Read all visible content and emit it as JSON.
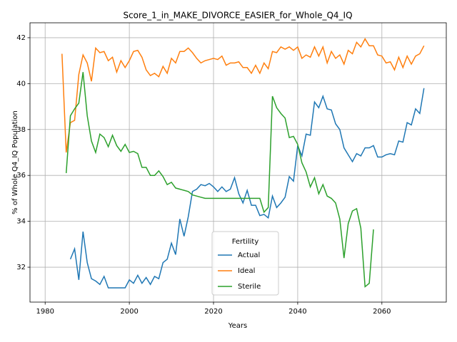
{
  "chart_data": {
    "type": "line",
    "title": "Score_1_in_MAKE_DIVORCE_EASIER_for_Whole_Q4_IQ",
    "x_label": "Years",
    "y_label": "% of Whole Q4_IQ Population",
    "legend_title": "Fertility",
    "legend": "lower center",
    "grid": true,
    "x": [
      1984,
      1985,
      1986,
      1987,
      1988,
      1989,
      1990,
      1991,
      1992,
      1993,
      1994,
      1995,
      1996,
      1997,
      1998,
      1999,
      2000,
      2001,
      2002,
      2003,
      2004,
      2005,
      2006,
      2007,
      2008,
      2009,
      2010,
      2011,
      2012,
      2013,
      2014,
      2015,
      2016,
      2017,
      2018,
      2019,
      2020,
      2021,
      2022,
      2023,
      2024,
      2025,
      2026,
      2027,
      2028,
      2029,
      2030,
      2031,
      2032,
      2033,
      2034,
      2035,
      2036,
      2037,
      2038,
      2039,
      2040,
      2041,
      2042,
      2043,
      2044,
      2045,
      2046,
      2047,
      2048,
      2049,
      2050,
      2051,
      2052,
      2053,
      2054,
      2055,
      2056,
      2057,
      2058,
      2059,
      2060,
      2061,
      2062,
      2063,
      2064,
      2065,
      2066,
      2067,
      2068,
      2069,
      2070
    ],
    "series": [
      {
        "name": "Actual",
        "color": "#1f77b4",
        "values": [
          null,
          null,
          32.35,
          32.8,
          31.45,
          33.55,
          32.2,
          31.5,
          31.4,
          31.25,
          31.6,
          31.1,
          31.1,
          31.1,
          31.1,
          31.1,
          31.45,
          31.3,
          31.65,
          31.3,
          31.55,
          31.25,
          31.6,
          31.5,
          32.2,
          32.35,
          33.05,
          32.55,
          34.1,
          33.35,
          34.2,
          35.3,
          35.4,
          35.6,
          35.55,
          35.65,
          35.5,
          35.3,
          35.5,
          35.3,
          35.4,
          35.9,
          35.2,
          34.8,
          35.35,
          34.7,
          34.7,
          34.25,
          34.3,
          34.15,
          35.1,
          34.6,
          34.8,
          35.05,
          35.95,
          35.75,
          37.3,
          36.85,
          37.8,
          37.75,
          39.2,
          38.95,
          39.45,
          38.9,
          38.85,
          38.25,
          38.0,
          37.2,
          36.9,
          36.6,
          36.95,
          36.85,
          37.2,
          37.2,
          37.3,
          36.8,
          36.8,
          36.9,
          36.95,
          36.9,
          37.5,
          37.45,
          38.3,
          38.2,
          38.9,
          38.7,
          39.8
        ]
      },
      {
        "name": "Ideal",
        "color": "#ff7f0e",
        "values": [
          41.3,
          37.0,
          38.3,
          38.4,
          40.4,
          41.25,
          40.9,
          40.1,
          41.55,
          41.35,
          41.4,
          41.0,
          41.15,
          40.5,
          41.0,
          40.7,
          41.0,
          41.4,
          41.45,
          41.15,
          40.6,
          40.35,
          40.45,
          40.3,
          40.75,
          40.45,
          41.1,
          40.9,
          41.4,
          41.4,
          41.55,
          41.35,
          41.1,
          40.9,
          41.0,
          41.05,
          41.1,
          41.05,
          41.2,
          40.8,
          40.9,
          40.9,
          40.95,
          40.7,
          40.7,
          40.45,
          40.8,
          40.45,
          40.9,
          40.65,
          41.4,
          41.35,
          41.6,
          41.5,
          41.6,
          41.45,
          41.6,
          41.1,
          41.25,
          41.15,
          41.6,
          41.2,
          41.6,
          40.9,
          41.4,
          41.1,
          41.25,
          40.85,
          41.45,
          41.3,
          41.8,
          41.6,
          41.95,
          41.65,
          41.65,
          41.25,
          41.2,
          40.9,
          40.95,
          40.6,
          41.15,
          40.7,
          41.2,
          40.85,
          41.2,
          41.3,
          41.65
        ]
      },
      {
        "name": "Sterile",
        "color": "#2ca02c",
        "values": [
          null,
          36.1,
          38.6,
          38.9,
          39.15,
          40.5,
          38.6,
          37.5,
          37.0,
          37.8,
          37.65,
          37.25,
          37.75,
          37.3,
          37.05,
          37.35,
          37.0,
          37.05,
          36.95,
          36.35,
          36.35,
          36.0,
          36.0,
          36.2,
          35.95,
          35.6,
          35.7,
          35.45,
          35.4,
          35.35,
          35.3,
          35.15,
          35.1,
          35.05,
          35.0,
          35.0,
          35.0,
          35.0,
          35.0,
          35.0,
          35.0,
          35.0,
          35.0,
          35.0,
          35.0,
          35.0,
          35.0,
          35.0,
          34.4,
          34.6,
          39.45,
          38.95,
          38.7,
          38.5,
          37.65,
          37.7,
          37.35,
          36.55,
          36.15,
          35.5,
          35.9,
          35.2,
          35.6,
          35.1,
          35.0,
          34.8,
          34.1,
          32.4,
          33.9,
          34.45,
          34.55,
          33.7,
          31.15,
          31.3,
          33.65,
          null,
          null,
          null,
          null,
          null,
          null,
          null,
          null,
          null,
          null,
          null,
          null
        ]
      }
    ],
    "xlim": [
      1976.4,
      2075.3
    ],
    "xticks": [
      1980,
      2000,
      2020,
      2040,
      2060
    ],
    "ylim": [
      30.48,
      42.65
    ],
    "yticks": [
      32,
      34,
      36,
      38,
      40,
      42
    ]
  }
}
